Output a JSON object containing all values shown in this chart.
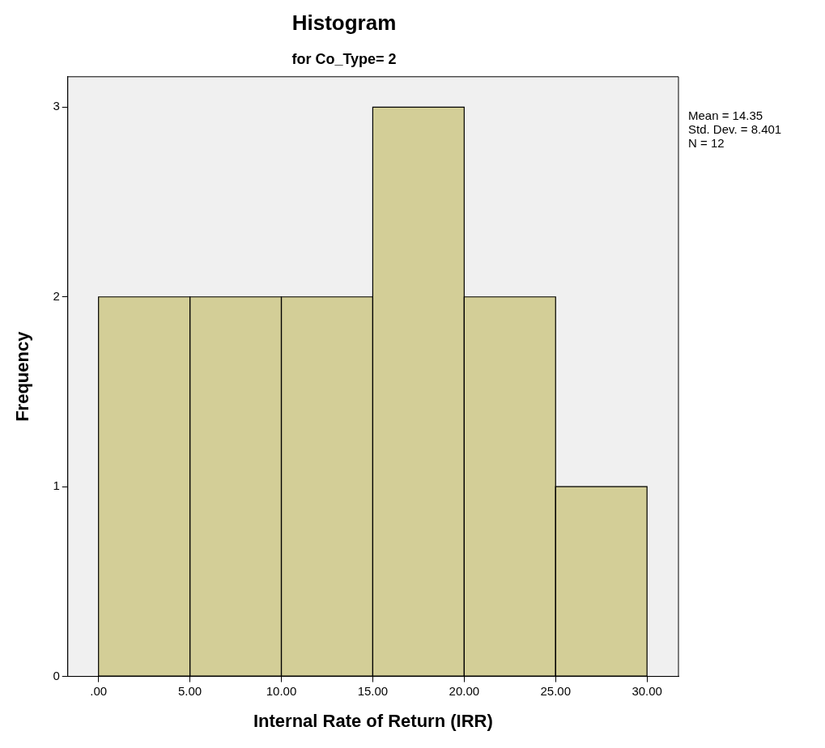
{
  "chart_data": {
    "type": "histogram",
    "title": "Histogram",
    "subtitle": "for Co_Type= 2",
    "xlabel": "Internal Rate of Return (IRR)",
    "ylabel": "Frequency",
    "bins": [
      0,
      5,
      10,
      15,
      20,
      25,
      30
    ],
    "values": [
      2,
      2,
      2,
      3,
      2,
      1
    ],
    "color": "#d3ce97",
    "xlim": [
      -1.68,
      31.72
    ],
    "xticks": [
      {
        "value": 0,
        "label": ".00"
      },
      {
        "value": 5,
        "label": "5.00"
      },
      {
        "value": 10,
        "label": "10.00"
      },
      {
        "value": 15,
        "label": "15.00"
      },
      {
        "value": 20,
        "label": "20.00"
      },
      {
        "value": 25,
        "label": "25.00"
      },
      {
        "value": 30,
        "label": "30.00"
      }
    ],
    "ylim": [
      0,
      3.16
    ],
    "yticks": [
      0,
      1,
      2,
      3
    ],
    "legend": false,
    "annotations": [
      "Mean = 14.35",
      "Std. Dev. = 8.401",
      "N = 12"
    ]
  }
}
